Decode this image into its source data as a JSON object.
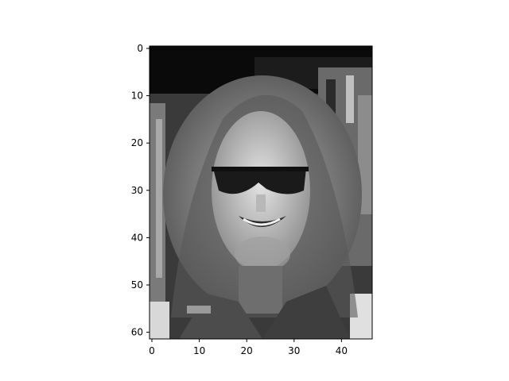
{
  "chart_data": {
    "type": "heatmap",
    "title": "",
    "xlabel": "",
    "ylabel": "",
    "colormap": "gray",
    "image_shape": [
      62,
      47
    ],
    "xlim": [
      -0.5,
      46.5
    ],
    "ylim": [
      61.5,
      -0.5
    ],
    "x_ticks": [
      0,
      10,
      20,
      30,
      40
    ],
    "y_ticks": [
      0,
      10,
      20,
      30,
      40,
      50,
      60
    ],
    "x_tick_labels": [
      "0",
      "10",
      "20",
      "30",
      "40"
    ],
    "y_tick_labels": [
      "0",
      "10",
      "20",
      "30",
      "40",
      "50",
      "60"
    ],
    "grid": false,
    "content": "grayscale face image"
  }
}
